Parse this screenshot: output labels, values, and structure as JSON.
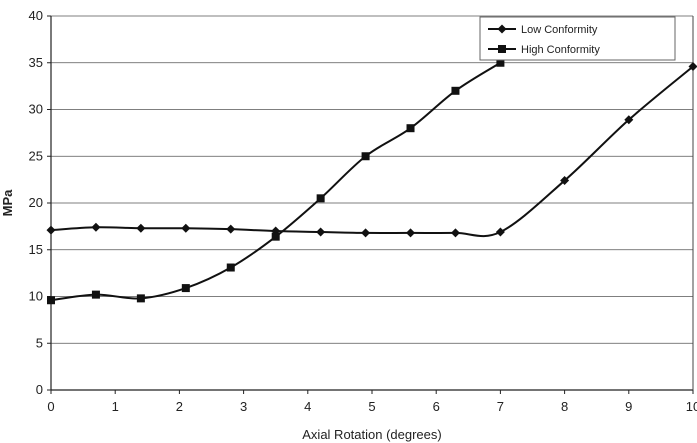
{
  "chart_data": {
    "type": "line",
    "title": "",
    "xlabel": "Axial Rotation (degrees)",
    "ylabel": "MPa",
    "xlim": [
      0,
      10
    ],
    "ylim": [
      0,
      40
    ],
    "x_ticks": [
      "0",
      "1",
      "2",
      "3",
      "4",
      "5",
      "6",
      "7",
      "8",
      "9",
      "10"
    ],
    "y_ticks": [
      "0",
      "5",
      "10",
      "15",
      "20",
      "25",
      "30",
      "35",
      "40"
    ],
    "grid": "horizontal",
    "legend_position": "top-right",
    "series": [
      {
        "name": "Low Conformity",
        "marker": "diamond",
        "color": "#111111",
        "points": [
          [
            0,
            17.1
          ],
          [
            0.7,
            17.4
          ],
          [
            1.4,
            17.3
          ],
          [
            2.1,
            17.3
          ],
          [
            2.8,
            17.2
          ],
          [
            3.5,
            17.0
          ],
          [
            4.2,
            16.9
          ],
          [
            4.9,
            16.8
          ],
          [
            5.6,
            16.8
          ],
          [
            6.3,
            16.8
          ],
          [
            7.0,
            16.9
          ],
          [
            8.0,
            22.4
          ],
          [
            9.0,
            28.9
          ],
          [
            10.0,
            34.6
          ]
        ]
      },
      {
        "name": "High Conformity",
        "marker": "square",
        "color": "#111111",
        "points": [
          [
            0,
            9.6
          ],
          [
            0.7,
            10.2
          ],
          [
            1.4,
            9.8
          ],
          [
            2.1,
            10.9
          ],
          [
            2.8,
            13.1
          ],
          [
            3.5,
            16.4
          ],
          [
            4.2,
            20.5
          ],
          [
            4.9,
            25.0
          ],
          [
            5.6,
            28.0
          ],
          [
            6.3,
            32.0
          ],
          [
            7.0,
            35.0
          ]
        ]
      }
    ]
  }
}
